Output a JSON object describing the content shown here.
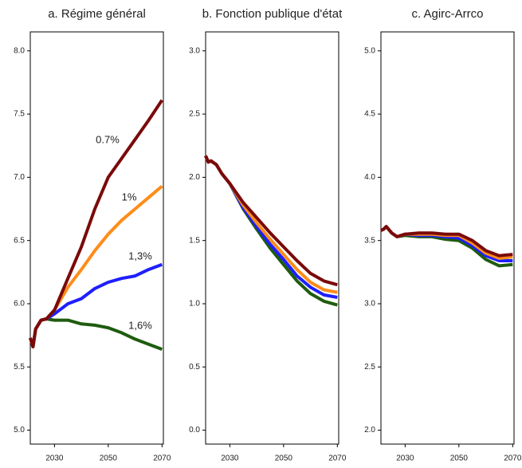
{
  "chart_data": [
    {
      "type": "line",
      "title": "a. Régime général",
      "x": [
        2021,
        2022,
        2023,
        2025,
        2027,
        2030,
        2035,
        2040,
        2045,
        2050,
        2055,
        2060,
        2065,
        2070
      ],
      "series": [
        {
          "color": "#1f5c0f",
          "values": [
            5.73,
            5.66,
            5.8,
            5.87,
            5.88,
            5.87,
            5.87,
            5.84,
            5.83,
            5.81,
            5.77,
            5.72,
            5.68,
            5.64
          ]
        },
        {
          "color": "#1f1fff",
          "values": [
            5.73,
            5.66,
            5.8,
            5.87,
            5.88,
            5.92,
            6.0,
            6.04,
            6.12,
            6.17,
            6.2,
            6.22,
            6.27,
            6.31
          ]
        },
        {
          "color": "#ff8c1a",
          "values": [
            5.73,
            5.66,
            5.8,
            5.87,
            5.88,
            5.95,
            6.13,
            6.27,
            6.42,
            6.55,
            6.66,
            6.75,
            6.84,
            6.93
          ]
        },
        {
          "color": "#7a0a0a",
          "values": [
            5.73,
            5.66,
            5.8,
            5.87,
            5.88,
            5.95,
            6.2,
            6.45,
            6.75,
            7.0,
            7.15,
            7.3,
            7.45,
            7.61
          ]
        }
      ],
      "annotations": [
        "0.7%",
        "1%",
        "1,3%",
        "1,6%"
      ],
      "xlim": [
        2021,
        2070.5
      ],
      "xticks": [
        2030,
        2050,
        2070
      ],
      "ylim": [
        4.89,
        8.15
      ],
      "yticks": [
        {
          "value": 5,
          "label": "5.0"
        },
        5.5,
        {
          "value": 6,
          "label": "6.0"
        },
        6.5,
        {
          "value": 7,
          "label": "7.0"
        },
        7.5,
        {
          "value": 8,
          "label": "8.0"
        }
      ]
    },
    {
      "type": "line",
      "title": "b. Fonction publique d'état",
      "x": [
        2021,
        2022,
        2023,
        2025,
        2027,
        2030,
        2035,
        2040,
        2045,
        2050,
        2055,
        2060,
        2065,
        2070
      ],
      "series": [
        {
          "color": "#1f5c0f",
          "values": [
            2.17,
            2.12,
            2.13,
            2.1,
            2.03,
            1.95,
            1.75,
            1.59,
            1.44,
            1.31,
            1.18,
            1.08,
            1.02,
            0.99
          ]
        },
        {
          "color": "#1f1fff",
          "values": [
            2.17,
            2.12,
            2.13,
            2.1,
            2.03,
            1.95,
            1.76,
            1.61,
            1.47,
            1.35,
            1.22,
            1.13,
            1.07,
            1.05
          ]
        },
        {
          "color": "#ff8c1a",
          "values": [
            2.17,
            2.12,
            2.13,
            2.1,
            2.03,
            1.95,
            1.78,
            1.64,
            1.51,
            1.39,
            1.27,
            1.17,
            1.11,
            1.09
          ]
        },
        {
          "color": "#7a0a0a",
          "values": [
            2.17,
            2.12,
            2.13,
            2.1,
            2.03,
            1.95,
            1.8,
            1.68,
            1.56,
            1.45,
            1.34,
            1.24,
            1.18,
            1.15
          ]
        }
      ],
      "xlim": [
        2021,
        2070.5
      ],
      "xticks": [
        2030,
        2050,
        2070
      ],
      "ylim": [
        -0.11,
        3.15
      ],
      "yticks": [
        {
          "value": 0,
          "label": "0.0"
        },
        0.5,
        {
          "value": 1,
          "label": "1.0"
        },
        1.5,
        {
          "value": 2,
          "label": "2.0"
        },
        2.5,
        {
          "value": 3,
          "label": "3.0"
        }
      ]
    },
    {
      "type": "line",
      "title": "c. Agirc-Arrco",
      "x": [
        2021,
        2022,
        2023,
        2025,
        2027,
        2030,
        2035,
        2040,
        2045,
        2050,
        2055,
        2060,
        2065,
        2070
      ],
      "series": [
        {
          "color": "#1f5c0f",
          "values": [
            3.58,
            3.59,
            3.61,
            3.56,
            3.53,
            3.54,
            3.53,
            3.53,
            3.51,
            3.5,
            3.44,
            3.35,
            3.3,
            3.31
          ]
        },
        {
          "color": "#1f1fff",
          "values": [
            3.58,
            3.59,
            3.61,
            3.56,
            3.53,
            3.55,
            3.54,
            3.54,
            3.53,
            3.52,
            3.46,
            3.38,
            3.34,
            3.34
          ]
        },
        {
          "color": "#ff8c1a",
          "values": [
            3.58,
            3.59,
            3.61,
            3.56,
            3.53,
            3.55,
            3.55,
            3.55,
            3.54,
            3.54,
            3.48,
            3.4,
            3.36,
            3.37
          ]
        },
        {
          "color": "#7a0a0a",
          "values": [
            3.58,
            3.59,
            3.61,
            3.56,
            3.53,
            3.55,
            3.56,
            3.56,
            3.55,
            3.55,
            3.5,
            3.42,
            3.38,
            3.39
          ]
        }
      ],
      "xlim": [
        2021,
        2070.5
      ],
      "xticks": [
        2030,
        2050,
        2070
      ],
      "ylim": [
        1.89,
        5.15
      ],
      "yticks": [
        {
          "value": 2,
          "label": "2.0"
        },
        2.5,
        {
          "value": 3,
          "label": "3.0"
        },
        3.5,
        {
          "value": 4,
          "label": "4.0"
        },
        4.5,
        {
          "value": 5,
          "label": "5.0"
        }
      ]
    }
  ]
}
